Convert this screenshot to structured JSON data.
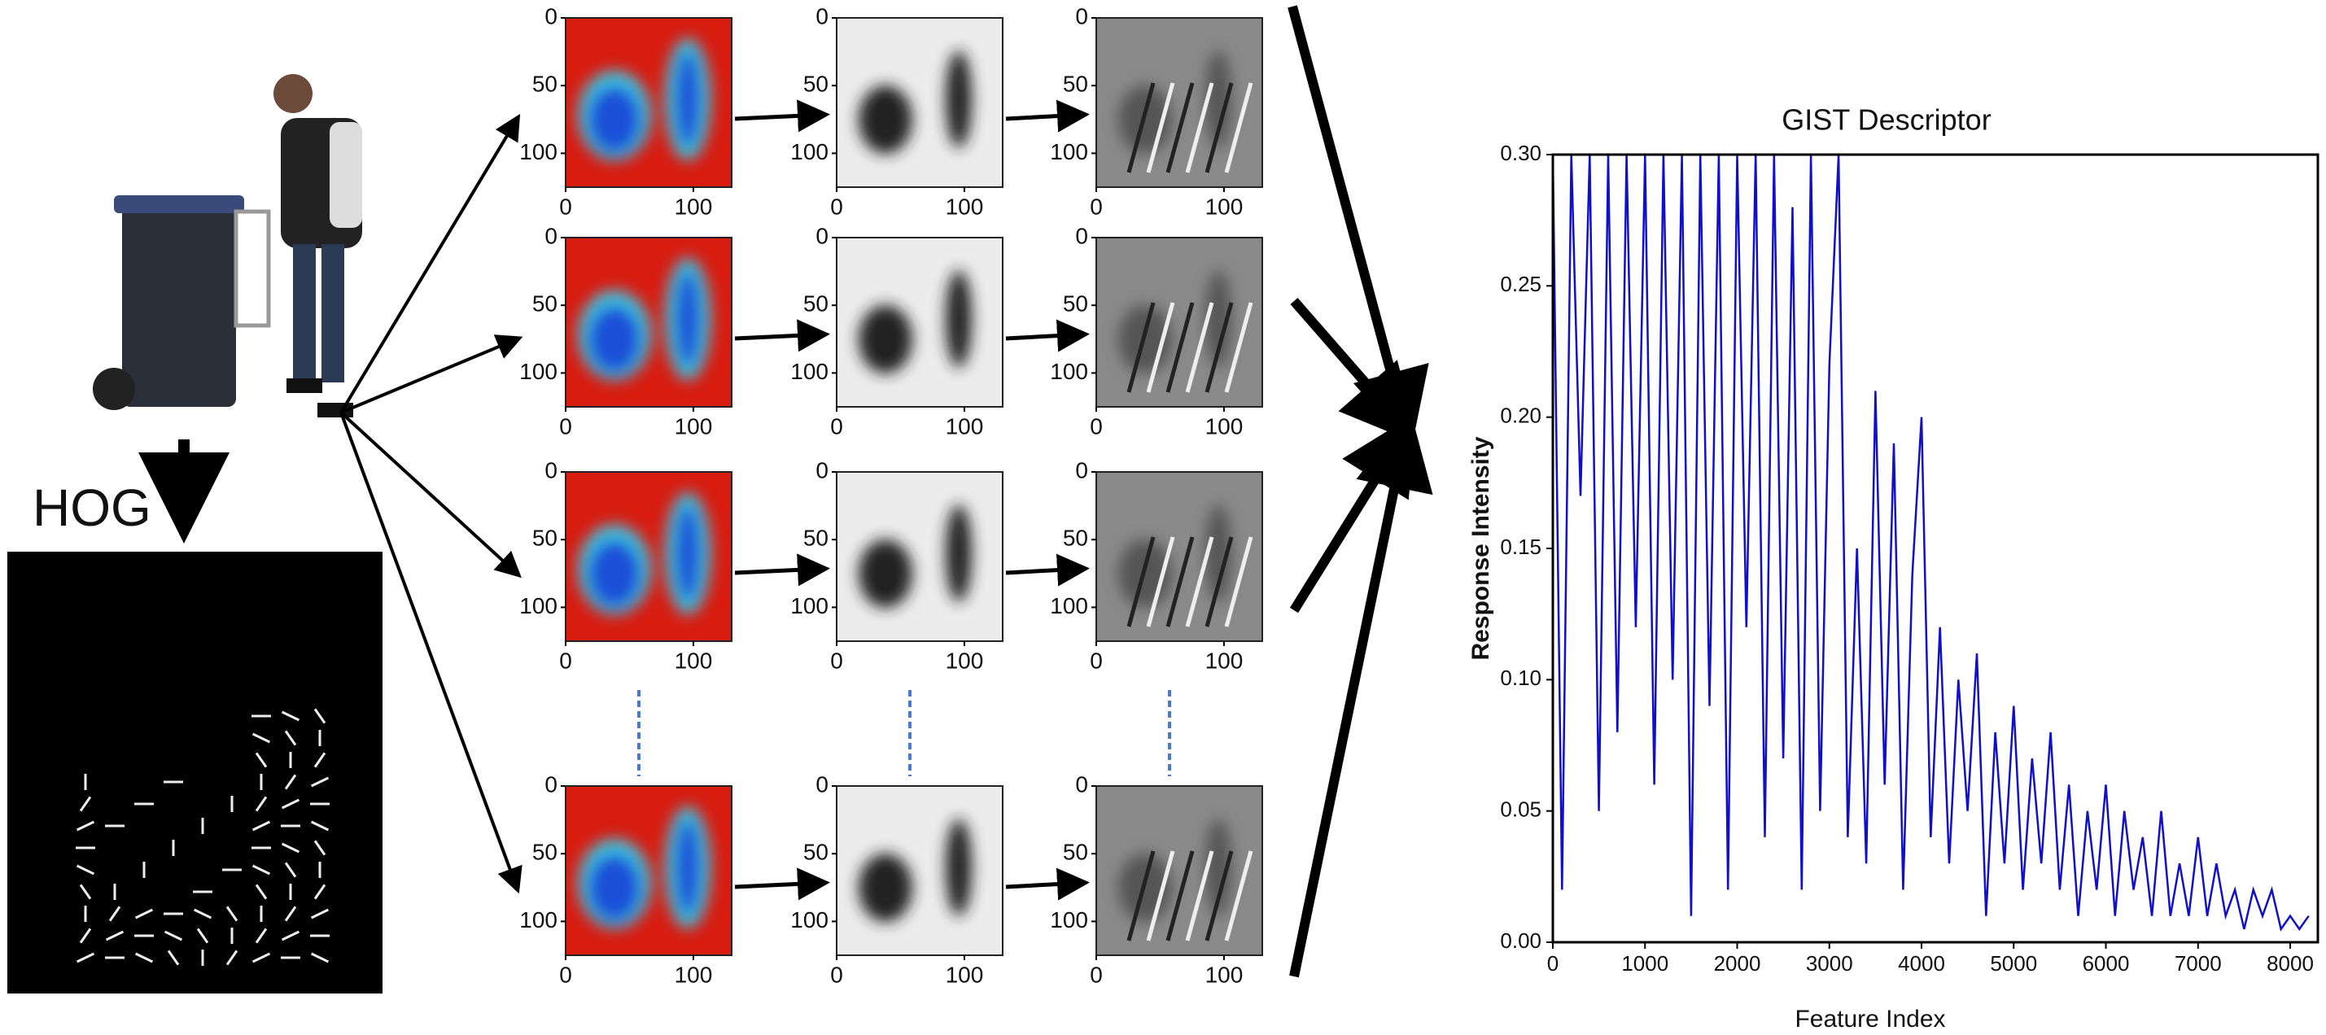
{
  "hog_label": "HOG",
  "feature_maps": {
    "xlim": [
      0,
      130
    ],
    "ylim": [
      0,
      125
    ],
    "xticks": [
      0,
      100
    ],
    "yticks": [
      0,
      50,
      100
    ]
  },
  "chart_data": {
    "type": "line",
    "title": "GIST Descriptor",
    "x_label": "Feature Index",
    "y_label": "Response Intensity",
    "color": "#1010c8",
    "x": [
      0,
      100,
      200,
      300,
      400,
      500,
      600,
      700,
      800,
      900,
      1000,
      1100,
      1200,
      1300,
      1400,
      1500,
      1600,
      1700,
      1800,
      1900,
      2000,
      2100,
      2200,
      2300,
      2400,
      2500,
      2600,
      2700,
      2800,
      2900,
      3000,
      3100,
      3200,
      3300,
      3400,
      3500,
      3600,
      3700,
      3800,
      3900,
      4000,
      4100,
      4200,
      4300,
      4400,
      4500,
      4600,
      4700,
      4800,
      4900,
      5000,
      5100,
      5200,
      5300,
      5400,
      5500,
      5600,
      5700,
      5800,
      5900,
      6000,
      6100,
      6200,
      6300,
      6400,
      6500,
      6600,
      6700,
      6800,
      6900,
      7000,
      7100,
      7200,
      7300,
      7400,
      7500,
      7600,
      7700,
      7800,
      7900,
      8000,
      8100,
      8200
    ],
    "values": [
      0.3,
      0.02,
      0.3,
      0.17,
      0.3,
      0.05,
      0.3,
      0.08,
      0.3,
      0.12,
      0.3,
      0.06,
      0.3,
      0.1,
      0.3,
      0.01,
      0.3,
      0.09,
      0.3,
      0.02,
      0.3,
      0.12,
      0.3,
      0.04,
      0.3,
      0.07,
      0.28,
      0.02,
      0.3,
      0.05,
      0.22,
      0.3,
      0.04,
      0.15,
      0.03,
      0.21,
      0.06,
      0.19,
      0.02,
      0.14,
      0.2,
      0.04,
      0.12,
      0.03,
      0.1,
      0.05,
      0.11,
      0.01,
      0.08,
      0.03,
      0.09,
      0.02,
      0.07,
      0.03,
      0.08,
      0.02,
      0.06,
      0.01,
      0.05,
      0.02,
      0.06,
      0.01,
      0.05,
      0.02,
      0.04,
      0.01,
      0.05,
      0.01,
      0.03,
      0.01,
      0.04,
      0.01,
      0.03,
      0.01,
      0.02,
      0.005,
      0.02,
      0.01,
      0.02,
      0.005,
      0.01,
      0.005,
      0.01
    ],
    "xlim": [
      0,
      8300
    ],
    "ylim": [
      0,
      0.3
    ],
    "xticks": [
      0,
      1000,
      2000,
      3000,
      4000,
      5000,
      6000,
      7000,
      8000
    ],
    "yticks": [
      {
        "value": 0,
        "label": "0.00"
      },
      {
        "value": 0.05,
        "label": "0.05"
      },
      {
        "value": 0.1,
        "label": "0.10"
      },
      {
        "value": 0.15,
        "label": "0.15"
      },
      {
        "value": 0.2,
        "label": "0.20"
      },
      {
        "value": 0.25,
        "label": "0.25"
      },
      {
        "value": 0.3,
        "label": "0.30"
      }
    ]
  }
}
